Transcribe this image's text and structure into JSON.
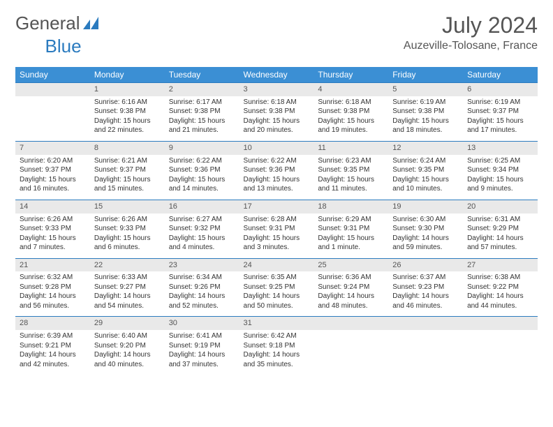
{
  "brand": {
    "part1": "General",
    "part2": "Blue"
  },
  "title": {
    "month": "July 2024",
    "location": "Auzeville-Tolosane, France"
  },
  "colors": {
    "header_bg": "#3b8fd4",
    "header_text": "#ffffff",
    "daynum_bg": "#e9e9e9",
    "daynum_border": "#2b7bbf",
    "text": "#333333",
    "muted": "#555555",
    "brand_blue": "#2b7bbf"
  },
  "typography": {
    "month_fontsize": 32,
    "loc_fontsize": 16,
    "weekday_fontsize": 12,
    "daynum_fontsize": 11,
    "body_fontsize": 10
  },
  "weekdays": [
    "Sunday",
    "Monday",
    "Tuesday",
    "Wednesday",
    "Thursday",
    "Friday",
    "Saturday"
  ],
  "weeks": [
    [
      {
        "n": "",
        "sr": "",
        "ss": "",
        "dl": ""
      },
      {
        "n": "1",
        "sr": "Sunrise: 6:16 AM",
        "ss": "Sunset: 9:38 PM",
        "dl": "Daylight: 15 hours and 22 minutes."
      },
      {
        "n": "2",
        "sr": "Sunrise: 6:17 AM",
        "ss": "Sunset: 9:38 PM",
        "dl": "Daylight: 15 hours and 21 minutes."
      },
      {
        "n": "3",
        "sr": "Sunrise: 6:18 AM",
        "ss": "Sunset: 9:38 PM",
        "dl": "Daylight: 15 hours and 20 minutes."
      },
      {
        "n": "4",
        "sr": "Sunrise: 6:18 AM",
        "ss": "Sunset: 9:38 PM",
        "dl": "Daylight: 15 hours and 19 minutes."
      },
      {
        "n": "5",
        "sr": "Sunrise: 6:19 AM",
        "ss": "Sunset: 9:38 PM",
        "dl": "Daylight: 15 hours and 18 minutes."
      },
      {
        "n": "6",
        "sr": "Sunrise: 6:19 AM",
        "ss": "Sunset: 9:37 PM",
        "dl": "Daylight: 15 hours and 17 minutes."
      }
    ],
    [
      {
        "n": "7",
        "sr": "Sunrise: 6:20 AM",
        "ss": "Sunset: 9:37 PM",
        "dl": "Daylight: 15 hours and 16 minutes."
      },
      {
        "n": "8",
        "sr": "Sunrise: 6:21 AM",
        "ss": "Sunset: 9:37 PM",
        "dl": "Daylight: 15 hours and 15 minutes."
      },
      {
        "n": "9",
        "sr": "Sunrise: 6:22 AM",
        "ss": "Sunset: 9:36 PM",
        "dl": "Daylight: 15 hours and 14 minutes."
      },
      {
        "n": "10",
        "sr": "Sunrise: 6:22 AM",
        "ss": "Sunset: 9:36 PM",
        "dl": "Daylight: 15 hours and 13 minutes."
      },
      {
        "n": "11",
        "sr": "Sunrise: 6:23 AM",
        "ss": "Sunset: 9:35 PM",
        "dl": "Daylight: 15 hours and 11 minutes."
      },
      {
        "n": "12",
        "sr": "Sunrise: 6:24 AM",
        "ss": "Sunset: 9:35 PM",
        "dl": "Daylight: 15 hours and 10 minutes."
      },
      {
        "n": "13",
        "sr": "Sunrise: 6:25 AM",
        "ss": "Sunset: 9:34 PM",
        "dl": "Daylight: 15 hours and 9 minutes."
      }
    ],
    [
      {
        "n": "14",
        "sr": "Sunrise: 6:26 AM",
        "ss": "Sunset: 9:33 PM",
        "dl": "Daylight: 15 hours and 7 minutes."
      },
      {
        "n": "15",
        "sr": "Sunrise: 6:26 AM",
        "ss": "Sunset: 9:33 PM",
        "dl": "Daylight: 15 hours and 6 minutes."
      },
      {
        "n": "16",
        "sr": "Sunrise: 6:27 AM",
        "ss": "Sunset: 9:32 PM",
        "dl": "Daylight: 15 hours and 4 minutes."
      },
      {
        "n": "17",
        "sr": "Sunrise: 6:28 AM",
        "ss": "Sunset: 9:31 PM",
        "dl": "Daylight: 15 hours and 3 minutes."
      },
      {
        "n": "18",
        "sr": "Sunrise: 6:29 AM",
        "ss": "Sunset: 9:31 PM",
        "dl": "Daylight: 15 hours and 1 minute."
      },
      {
        "n": "19",
        "sr": "Sunrise: 6:30 AM",
        "ss": "Sunset: 9:30 PM",
        "dl": "Daylight: 14 hours and 59 minutes."
      },
      {
        "n": "20",
        "sr": "Sunrise: 6:31 AM",
        "ss": "Sunset: 9:29 PM",
        "dl": "Daylight: 14 hours and 57 minutes."
      }
    ],
    [
      {
        "n": "21",
        "sr": "Sunrise: 6:32 AM",
        "ss": "Sunset: 9:28 PM",
        "dl": "Daylight: 14 hours and 56 minutes."
      },
      {
        "n": "22",
        "sr": "Sunrise: 6:33 AM",
        "ss": "Sunset: 9:27 PM",
        "dl": "Daylight: 14 hours and 54 minutes."
      },
      {
        "n": "23",
        "sr": "Sunrise: 6:34 AM",
        "ss": "Sunset: 9:26 PM",
        "dl": "Daylight: 14 hours and 52 minutes."
      },
      {
        "n": "24",
        "sr": "Sunrise: 6:35 AM",
        "ss": "Sunset: 9:25 PM",
        "dl": "Daylight: 14 hours and 50 minutes."
      },
      {
        "n": "25",
        "sr": "Sunrise: 6:36 AM",
        "ss": "Sunset: 9:24 PM",
        "dl": "Daylight: 14 hours and 48 minutes."
      },
      {
        "n": "26",
        "sr": "Sunrise: 6:37 AM",
        "ss": "Sunset: 9:23 PM",
        "dl": "Daylight: 14 hours and 46 minutes."
      },
      {
        "n": "27",
        "sr": "Sunrise: 6:38 AM",
        "ss": "Sunset: 9:22 PM",
        "dl": "Daylight: 14 hours and 44 minutes."
      }
    ],
    [
      {
        "n": "28",
        "sr": "Sunrise: 6:39 AM",
        "ss": "Sunset: 9:21 PM",
        "dl": "Daylight: 14 hours and 42 minutes."
      },
      {
        "n": "29",
        "sr": "Sunrise: 6:40 AM",
        "ss": "Sunset: 9:20 PM",
        "dl": "Daylight: 14 hours and 40 minutes."
      },
      {
        "n": "30",
        "sr": "Sunrise: 6:41 AM",
        "ss": "Sunset: 9:19 PM",
        "dl": "Daylight: 14 hours and 37 minutes."
      },
      {
        "n": "31",
        "sr": "Sunrise: 6:42 AM",
        "ss": "Sunset: 9:18 PM",
        "dl": "Daylight: 14 hours and 35 minutes."
      },
      {
        "n": "",
        "sr": "",
        "ss": "",
        "dl": ""
      },
      {
        "n": "",
        "sr": "",
        "ss": "",
        "dl": ""
      },
      {
        "n": "",
        "sr": "",
        "ss": "",
        "dl": ""
      }
    ]
  ]
}
